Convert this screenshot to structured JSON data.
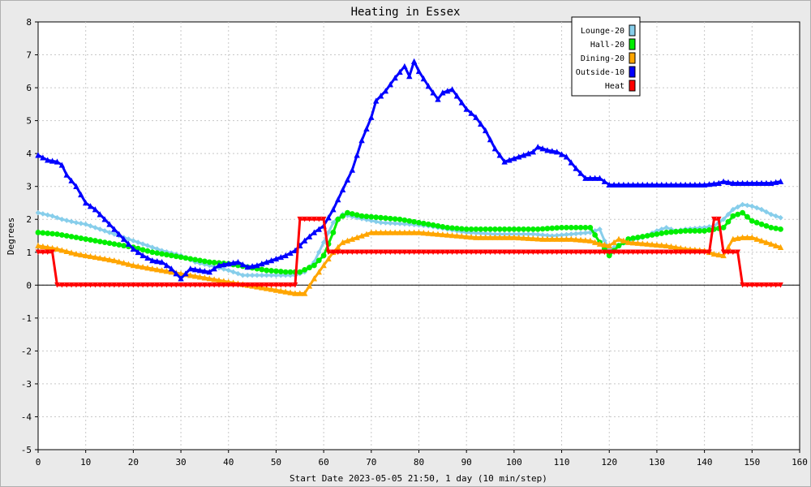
{
  "chart_data": {
    "type": "line",
    "title": "Heating in Essex",
    "xlabel": "Start Date 2023-05-05 21:50, 1 day (10 min/step)",
    "ylabel": "Degrees",
    "xlim": [
      0,
      160
    ],
    "ylim": [
      -5,
      8
    ],
    "xticks": [
      0,
      10,
      20,
      30,
      40,
      50,
      60,
      70,
      80,
      90,
      100,
      110,
      120,
      130,
      140,
      150,
      160
    ],
    "yticks": [
      -5,
      -4,
      -3,
      -2,
      -1,
      0,
      1,
      2,
      3,
      4,
      5,
      6,
      7,
      8
    ],
    "grid": true,
    "legend_position": "top-right",
    "series": [
      {
        "name": "Lounge-20",
        "color": "#87ceeb",
        "marker": "diamond",
        "points": [
          [
            0,
            2.2
          ],
          [
            3,
            2.1
          ],
          [
            5,
            2.0
          ],
          [
            8,
            1.9
          ],
          [
            10,
            1.85
          ],
          [
            14,
            1.65
          ],
          [
            18,
            1.45
          ],
          [
            22,
            1.25
          ],
          [
            26,
            1.05
          ],
          [
            30,
            0.9
          ],
          [
            33,
            0.7
          ],
          [
            36,
            0.6
          ],
          [
            40,
            0.45
          ],
          [
            43,
            0.3
          ],
          [
            46,
            0.3
          ],
          [
            50,
            0.3
          ],
          [
            54,
            0.3
          ],
          [
            56,
            0.4
          ],
          [
            58,
            0.7
          ],
          [
            60,
            1.3
          ],
          [
            62,
            1.9
          ],
          [
            64,
            2.15
          ],
          [
            67,
            2.05
          ],
          [
            72,
            1.9
          ],
          [
            78,
            1.85
          ],
          [
            82,
            1.8
          ],
          [
            86,
            1.7
          ],
          [
            90,
            1.6
          ],
          [
            96,
            1.55
          ],
          [
            100,
            1.55
          ],
          [
            104,
            1.55
          ],
          [
            108,
            1.5
          ],
          [
            112,
            1.55
          ],
          [
            116,
            1.6
          ],
          [
            118,
            1.7
          ],
          [
            119,
            1.35
          ],
          [
            120,
            1.1
          ],
          [
            122,
            1.2
          ],
          [
            124,
            1.35
          ],
          [
            127,
            1.45
          ],
          [
            130,
            1.65
          ],
          [
            132,
            1.75
          ],
          [
            134,
            1.65
          ],
          [
            136,
            1.7
          ],
          [
            140,
            1.75
          ],
          [
            142,
            1.8
          ],
          [
            144,
            2.0
          ],
          [
            146,
            2.3
          ],
          [
            148,
            2.45
          ],
          [
            150,
            2.4
          ],
          [
            152,
            2.3
          ],
          [
            154,
            2.15
          ],
          [
            156,
            2.05
          ]
        ]
      },
      {
        "name": "Hall-20",
        "color": "#00ee00",
        "marker": "circle",
        "points": [
          [
            0,
            1.6
          ],
          [
            4,
            1.55
          ],
          [
            8,
            1.45
          ],
          [
            12,
            1.35
          ],
          [
            16,
            1.25
          ],
          [
            20,
            1.15
          ],
          [
            24,
            1.0
          ],
          [
            28,
            0.9
          ],
          [
            32,
            0.8
          ],
          [
            36,
            0.7
          ],
          [
            40,
            0.65
          ],
          [
            44,
            0.55
          ],
          [
            48,
            0.45
          ],
          [
            52,
            0.4
          ],
          [
            55,
            0.4
          ],
          [
            58,
            0.6
          ],
          [
            60,
            0.9
          ],
          [
            62,
            1.6
          ],
          [
            63,
            2.0
          ],
          [
            65,
            2.2
          ],
          [
            68,
            2.1
          ],
          [
            72,
            2.05
          ],
          [
            76,
            2.0
          ],
          [
            80,
            1.9
          ],
          [
            84,
            1.8
          ],
          [
            86,
            1.75
          ],
          [
            90,
            1.7
          ],
          [
            95,
            1.7
          ],
          [
            100,
            1.7
          ],
          [
            105,
            1.7
          ],
          [
            110,
            1.75
          ],
          [
            116,
            1.75
          ],
          [
            118,
            1.3
          ],
          [
            120,
            0.9
          ],
          [
            122,
            1.2
          ],
          [
            124,
            1.4
          ],
          [
            128,
            1.5
          ],
          [
            132,
            1.6
          ],
          [
            136,
            1.65
          ],
          [
            140,
            1.65
          ],
          [
            142,
            1.7
          ],
          [
            144,
            1.75
          ],
          [
            146,
            2.1
          ],
          [
            148,
            2.2
          ],
          [
            150,
            1.95
          ],
          [
            152,
            1.85
          ],
          [
            154,
            1.75
          ],
          [
            156,
            1.7
          ]
        ]
      },
      {
        "name": "Dining-20",
        "color": "#ffa500",
        "marker": "triangle",
        "points": [
          [
            0,
            1.2
          ],
          [
            4,
            1.1
          ],
          [
            8,
            0.95
          ],
          [
            12,
            0.85
          ],
          [
            16,
            0.75
          ],
          [
            20,
            0.6
          ],
          [
            24,
            0.5
          ],
          [
            28,
            0.4
          ],
          [
            32,
            0.3
          ],
          [
            36,
            0.2
          ],
          [
            40,
            0.1
          ],
          [
            44,
            0.0
          ],
          [
            48,
            -0.1
          ],
          [
            52,
            -0.2
          ],
          [
            54,
            -0.25
          ],
          [
            56,
            -0.25
          ],
          [
            58,
            0.2
          ],
          [
            60,
            0.6
          ],
          [
            62,
            1.0
          ],
          [
            64,
            1.3
          ],
          [
            68,
            1.5
          ],
          [
            70,
            1.6
          ],
          [
            74,
            1.6
          ],
          [
            80,
            1.6
          ],
          [
            84,
            1.55
          ],
          [
            88,
            1.5
          ],
          [
            92,
            1.45
          ],
          [
            100,
            1.45
          ],
          [
            106,
            1.4
          ],
          [
            112,
            1.4
          ],
          [
            116,
            1.35
          ],
          [
            118,
            1.25
          ],
          [
            120,
            1.2
          ],
          [
            122,
            1.4
          ],
          [
            124,
            1.3
          ],
          [
            128,
            1.25
          ],
          [
            132,
            1.2
          ],
          [
            136,
            1.1
          ],
          [
            140,
            1.05
          ],
          [
            142,
            0.95
          ],
          [
            144,
            0.9
          ],
          [
            146,
            1.4
          ],
          [
            148,
            1.45
          ],
          [
            150,
            1.45
          ],
          [
            152,
            1.35
          ],
          [
            154,
            1.25
          ],
          [
            156,
            1.15
          ]
        ]
      },
      {
        "name": "Outside-10",
        "color": "#0000ff",
        "marker": "triangle",
        "points": [
          [
            0,
            3.95
          ],
          [
            2,
            3.8
          ],
          [
            4,
            3.75
          ],
          [
            5,
            3.65
          ],
          [
            6,
            3.35
          ],
          [
            8,
            3.0
          ],
          [
            10,
            2.5
          ],
          [
            12,
            2.3
          ],
          [
            14,
            2.0
          ],
          [
            16,
            1.7
          ],
          [
            18,
            1.4
          ],
          [
            20,
            1.1
          ],
          [
            22,
            0.9
          ],
          [
            24,
            0.75
          ],
          [
            26,
            0.7
          ],
          [
            28,
            0.5
          ],
          [
            30,
            0.2
          ],
          [
            32,
            0.5
          ],
          [
            34,
            0.45
          ],
          [
            36,
            0.4
          ],
          [
            38,
            0.6
          ],
          [
            40,
            0.65
          ],
          [
            42,
            0.7
          ],
          [
            44,
            0.55
          ],
          [
            46,
            0.6
          ],
          [
            48,
            0.7
          ],
          [
            50,
            0.8
          ],
          [
            52,
            0.9
          ],
          [
            54,
            1.05
          ],
          [
            56,
            1.35
          ],
          [
            58,
            1.6
          ],
          [
            60,
            1.8
          ],
          [
            62,
            2.3
          ],
          [
            64,
            2.9
          ],
          [
            66,
            3.5
          ],
          [
            68,
            4.4
          ],
          [
            70,
            5.1
          ],
          [
            71,
            5.6
          ],
          [
            73,
            5.9
          ],
          [
            75,
            6.3
          ],
          [
            77,
            6.65
          ],
          [
            78,
            6.35
          ],
          [
            79,
            6.8
          ],
          [
            80,
            6.5
          ],
          [
            82,
            6.05
          ],
          [
            84,
            5.65
          ],
          [
            85,
            5.85
          ],
          [
            87,
            5.95
          ],
          [
            88,
            5.75
          ],
          [
            90,
            5.35
          ],
          [
            92,
            5.1
          ],
          [
            94,
            4.7
          ],
          [
            96,
            4.15
          ],
          [
            98,
            3.75
          ],
          [
            100,
            3.85
          ],
          [
            102,
            3.95
          ],
          [
            104,
            4.05
          ],
          [
            105,
            4.2
          ],
          [
            107,
            4.1
          ],
          [
            109,
            4.05
          ],
          [
            111,
            3.9
          ],
          [
            113,
            3.55
          ],
          [
            115,
            3.25
          ],
          [
            118,
            3.25
          ],
          [
            120,
            3.05
          ],
          [
            125,
            3.05
          ],
          [
            130,
            3.05
          ],
          [
            134,
            3.05
          ],
          [
            140,
            3.05
          ],
          [
            143,
            3.1
          ],
          [
            144,
            3.15
          ],
          [
            146,
            3.1
          ],
          [
            150,
            3.1
          ],
          [
            154,
            3.1
          ],
          [
            156,
            3.15
          ]
        ]
      },
      {
        "name": "Heat",
        "color": "#ff0000",
        "marker": "triangle-down",
        "points": [
          [
            0,
            1
          ],
          [
            3,
            1
          ],
          [
            4,
            0
          ],
          [
            54,
            0
          ],
          [
            55,
            2
          ],
          [
            60,
            2
          ],
          [
            61,
            1
          ],
          [
            141,
            1
          ],
          [
            142,
            2
          ],
          [
            143,
            2
          ],
          [
            144,
            1
          ],
          [
            147,
            1
          ],
          [
            148,
            0
          ],
          [
            156,
            0
          ]
        ]
      }
    ]
  }
}
